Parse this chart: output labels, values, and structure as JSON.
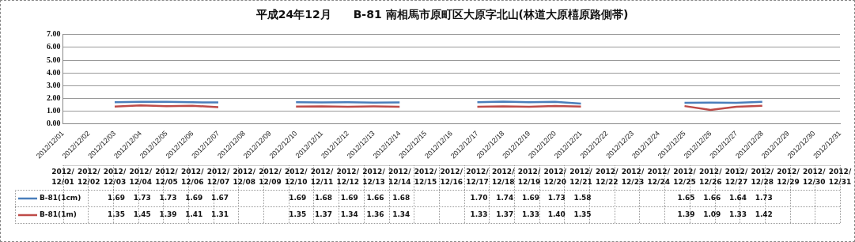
{
  "chart_data": {
    "type": "line",
    "title": "平成24年12月　　B-81 南相馬市原町区大原字北山(林道大原橲原路側帯)",
    "categories": [
      "2012/12/01",
      "2012/12/02",
      "2012/12/03",
      "2012/12/04",
      "2012/12/05",
      "2012/12/06",
      "2012/12/07",
      "2012/12/08",
      "2012/12/09",
      "2012/12/10",
      "2012/12/11",
      "2012/12/12",
      "2012/12/13",
      "2012/12/14",
      "2012/12/15",
      "2012/12/16",
      "2012/12/17",
      "2012/12/18",
      "2012/12/19",
      "2012/12/20",
      "2012/12/21",
      "2012/12/22",
      "2012/12/23",
      "2012/12/24",
      "2012/12/25",
      "2012/12/26",
      "2012/12/27",
      "2012/12/28",
      "2012/12/29",
      "2012/12/30",
      "2012/12/31"
    ],
    "series": [
      {
        "name": "B-81(1cm)",
        "color": "#4a7ebb",
        "values": [
          null,
          null,
          1.69,
          1.73,
          1.73,
          1.69,
          1.67,
          null,
          null,
          1.69,
          1.68,
          1.69,
          1.66,
          1.68,
          null,
          null,
          1.7,
          1.74,
          1.69,
          1.73,
          1.58,
          null,
          null,
          null,
          1.65,
          1.66,
          1.64,
          1.73,
          null,
          null,
          null
        ],
        "value_labels": [
          null,
          null,
          "1.69",
          "1.73",
          "1.73",
          "1.69",
          "1.67",
          null,
          null,
          "1.69",
          "1.68",
          "1.69",
          "1.66",
          "1.68",
          null,
          null,
          "1.70",
          "1.74",
          "1.69",
          "1.73",
          "1.58",
          null,
          null,
          null,
          "1.65",
          "1.66",
          "1.64",
          "1.73",
          null,
          null,
          null
        ]
      },
      {
        "name": "B-81(1m)",
        "color": "#be4b48",
        "values": [
          null,
          null,
          1.35,
          1.45,
          1.39,
          1.41,
          1.31,
          null,
          null,
          1.35,
          1.37,
          1.34,
          1.36,
          1.34,
          null,
          null,
          1.33,
          1.37,
          1.33,
          1.4,
          1.35,
          null,
          null,
          null,
          1.39,
          1.09,
          1.33,
          1.42,
          null,
          null,
          null
        ],
        "value_labels": [
          null,
          null,
          "1.35",
          "1.45",
          "1.39",
          "1.41",
          "1.31",
          null,
          null,
          "1.35",
          "1.37",
          "1.34",
          "1.36",
          "1.34",
          null,
          null,
          "1.33",
          "1.37",
          "1.33",
          "1.40",
          "1.35",
          null,
          null,
          null,
          "1.39",
          "1.09",
          "1.33",
          "1.42",
          null,
          null,
          null
        ]
      }
    ],
    "ylim": [
      0,
      7
    ],
    "yticks": [
      {
        "value": 0,
        "label": "0.00"
      },
      {
        "value": 1,
        "label": "1.00"
      },
      {
        "value": 2,
        "label": "2.00"
      },
      {
        "value": 3,
        "label": "3.00"
      },
      {
        "value": 4,
        "label": "4.00"
      },
      {
        "value": 5,
        "label": "5.00"
      },
      {
        "value": 6,
        "label": "6.00"
      },
      {
        "value": 7,
        "label": "7.00"
      }
    ],
    "grid": "y",
    "legend": "bottom",
    "marker": "none",
    "line_style": "solid"
  }
}
